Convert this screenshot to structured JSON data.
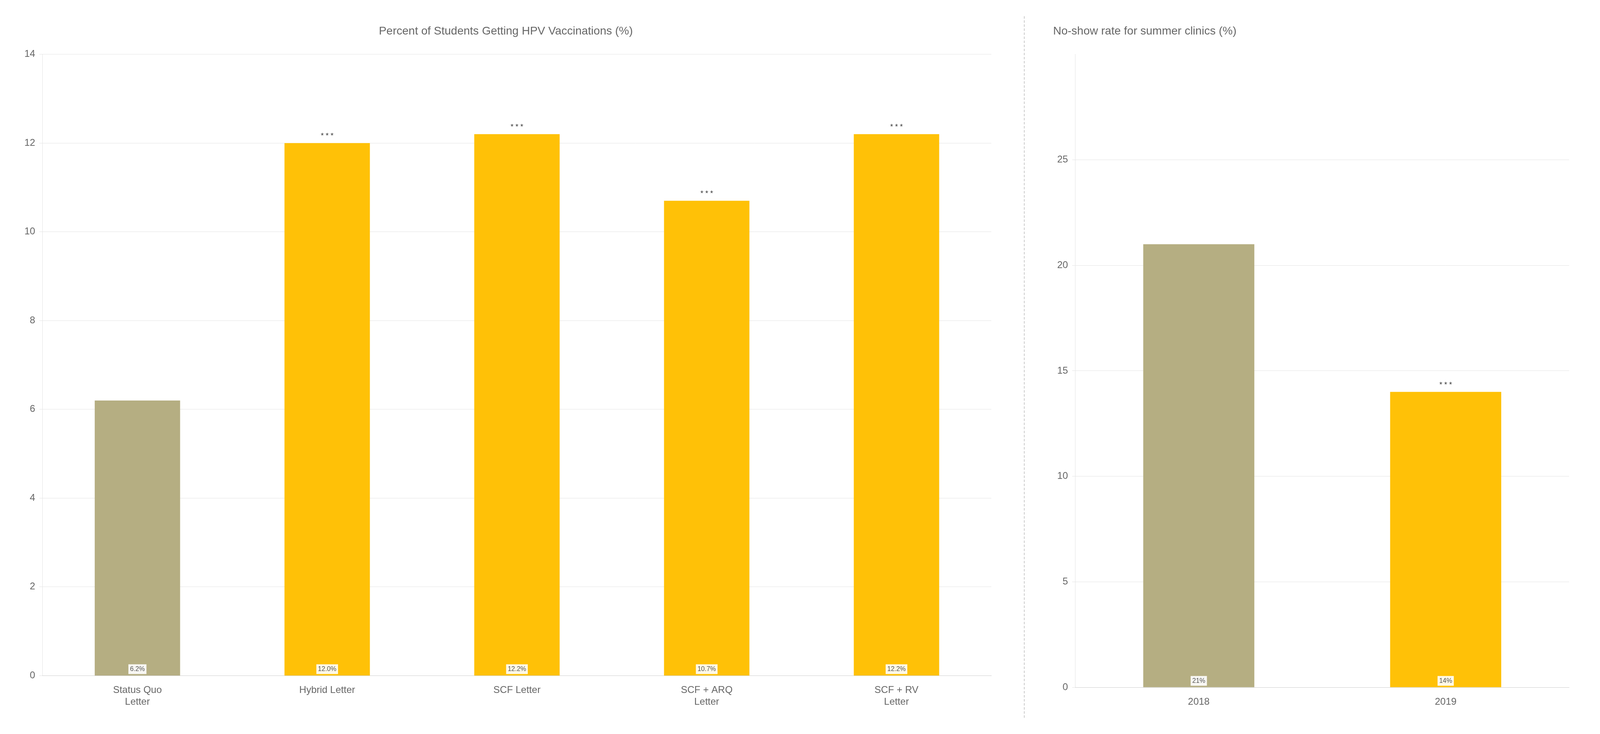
{
  "chart_data": [
    {
      "type": "bar",
      "title": "Percent of Students Getting HPV Vaccinations (%)",
      "categories": [
        "Status Quo\nLetter",
        "Hybrid Letter",
        "SCF Letter",
        "SCF + ARQ\nLetter",
        "SCF + RV\nLetter"
      ],
      "values": [
        6.2,
        12.0,
        12.2,
        10.7,
        12.2
      ],
      "value_labels": [
        "6.2%",
        "12.0%",
        "12.2%",
        "10.7%",
        "12.2%"
      ],
      "data_labels": true,
      "colors": [
        "#b5ae82",
        "#FFC107",
        "#FFC107",
        "#FFC107",
        "#FFC107"
      ],
      "annotations": [
        null,
        "* * *",
        "* * *",
        "* * *",
        "* * *"
      ],
      "ylim": [
        0,
        14
      ],
      "yticks": [
        0,
        2,
        4,
        6,
        8,
        10,
        12,
        14
      ],
      "grid": true
    },
    {
      "type": "bar",
      "title": "No-show rate for summer clinics (%)",
      "categories": [
        "2018",
        "2019"
      ],
      "values": [
        21,
        14
      ],
      "value_labels": [
        "21%",
        "14%"
      ],
      "data_labels": true,
      "colors": [
        "#b5ae82",
        "#FFC107"
      ],
      "annotations": [
        null,
        "* * *"
      ],
      "ylim": [
        0,
        30
      ],
      "yticks": [
        0,
        5,
        10,
        15,
        20,
        25
      ],
      "grid": true
    }
  ]
}
